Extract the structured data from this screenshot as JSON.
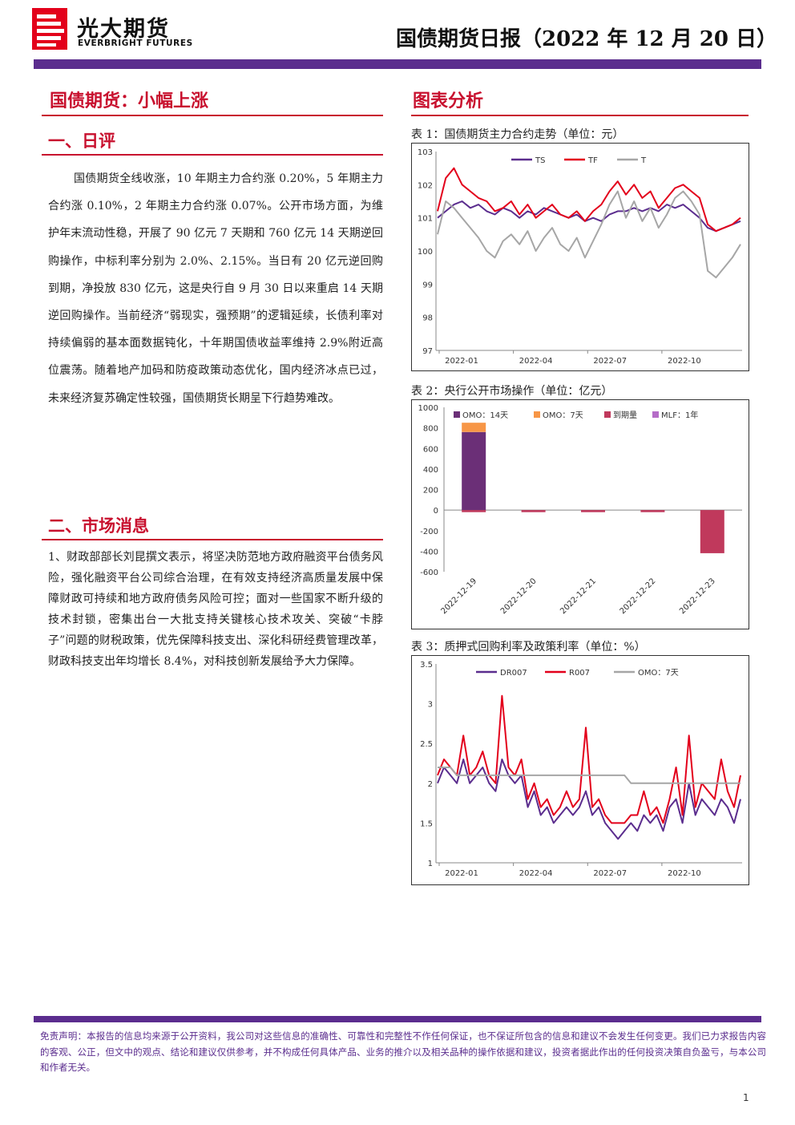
{
  "header": {
    "logo_cn": "光大期货",
    "logo_en": "EVERBRIGHT FUTURES",
    "report_title": "国债期货日报（2022 年 12 月 20 日）"
  },
  "main_title": "国债期货：小幅上涨",
  "chart_section_title": "图表分析",
  "section1": {
    "heading": "一、日评",
    "paragraph": "国债期货全线收涨，10 年期主力合约涨 0.20%，5 年期主力合约涨 0.10%，2 年期主力合约涨 0.07%。公开市场方面，为维护年末流动性稳，开展了 90 亿元 7 天期和 760 亿元 14 天期逆回购操作，中标利率分别为 2.0%、2.15%。当日有 20 亿元逆回购到期，净投放 830 亿元，这是央行自 9 月 30 日以来重启 14 天期逆回购操作。当前经济“弱现实，强预期”的逻辑延续，长债利率对持续偏弱的基本面数据钝化，十年期国债收益率维持 2.9%附近高位震荡。随着地产加码和防疫政策动态优化，国内经济冰点已过，未来经济复苏确定性较强，国债期货长期呈下行趋势难改。"
  },
  "section2": {
    "heading": "二、市场消息",
    "paragraph": "1、财政部部长刘昆撰文表示，将坚决防范地方政府融资平台债务风险，强化融资平台公司综合治理，在有效支持经济高质量发展中保障财政可持续和地方政府债务风险可控；面对一些国家不断升级的技术封锁，密集出台一大批支持关键核心技术攻关、突破“卡脖子”问题的财税政策，优先保障科技支出、深化科研经费管理改革，财政科技支出年均增长 8.4%，对科技创新发展给予大力保障。"
  },
  "captions": {
    "chart1": "表 1：国债期货主力合约走势（单位：元）",
    "chart2": "表 2：央行公开市场操作（单位：亿元）",
    "chart3": "表 3：质押式回购利率及政策利率（单位：%）"
  },
  "chart_data": [
    {
      "type": "line",
      "x_ticks": [
        "2022-01",
        "2022-04",
        "2022-07",
        "2022-10"
      ],
      "ylim": [
        97,
        103
      ],
      "y_ticks": [
        97,
        98,
        99,
        100,
        101,
        102,
        103
      ],
      "legend_position": "top",
      "series": [
        {
          "name": "TS",
          "color": "#5b2d8e",
          "values": [
            101.0,
            101.2,
            101.4,
            101.5,
            101.3,
            101.4,
            101.2,
            101.1,
            101.3,
            101.2,
            101.0,
            101.2,
            101.1,
            101.3,
            101.2,
            101.1,
            101.0,
            101.1,
            100.9,
            101.0,
            100.9,
            101.1,
            101.2,
            101.2,
            101.3,
            101.2,
            101.3,
            101.2,
            101.4,
            101.3,
            101.4,
            101.2,
            101.0,
            100.7,
            100.6,
            100.7,
            100.8,
            100.9
          ]
        },
        {
          "name": "TF",
          "color": "#e3001b",
          "values": [
            101.2,
            102.2,
            102.5,
            102.0,
            101.8,
            101.6,
            101.5,
            101.2,
            101.3,
            101.5,
            101.1,
            101.4,
            101.0,
            101.2,
            101.4,
            101.1,
            101.0,
            101.2,
            100.9,
            101.2,
            101.4,
            101.8,
            102.1,
            101.7,
            102.0,
            101.6,
            101.8,
            101.3,
            101.6,
            101.9,
            102.0,
            101.8,
            101.6,
            100.8,
            100.6,
            100.7,
            100.8,
            101.0
          ]
        },
        {
          "name": "T",
          "color": "#a6a6a6",
          "values": [
            100.5,
            101.5,
            101.3,
            101.0,
            100.7,
            100.4,
            100.0,
            99.8,
            100.3,
            100.5,
            100.2,
            100.6,
            100.0,
            100.4,
            100.7,
            100.2,
            100.0,
            100.4,
            99.8,
            100.3,
            100.8,
            101.4,
            101.8,
            101.0,
            101.5,
            100.9,
            101.3,
            100.7,
            101.1,
            101.6,
            101.8,
            101.5,
            101.1,
            99.4,
            99.2,
            99.5,
            99.8,
            100.2
          ]
        }
      ]
    },
    {
      "type": "bar",
      "categories": [
        "2022-12-19",
        "2022-12-20",
        "2022-12-21",
        "2022-12-22",
        "2022-12-23"
      ],
      "ylim": [
        -600,
        1000
      ],
      "y_ticks": [
        1000,
        800,
        600,
        400,
        200,
        0,
        -200,
        -400,
        -600
      ],
      "legend_position": "top",
      "series": [
        {
          "name": "OMO：14天",
          "color": "#6b2f77",
          "values": [
            760,
            0,
            0,
            0,
            0
          ]
        },
        {
          "name": "OMO：7天",
          "color": "#f79646",
          "values": [
            90,
            0,
            0,
            0,
            0
          ]
        },
        {
          "name": "到期量",
          "color": "#c0395c",
          "values": [
            -20,
            -20,
            -20,
            -20,
            -420
          ]
        },
        {
          "name": "MLF：1年",
          "color": "#b56cc7",
          "values": [
            0,
            0,
            0,
            0,
            0
          ]
        }
      ]
    },
    {
      "type": "line",
      "x_ticks": [
        "2022-01",
        "2022-04",
        "2022-07",
        "2022-10"
      ],
      "ylim": [
        1,
        3.5
      ],
      "y_ticks": [
        1,
        1.5,
        2,
        2.5,
        3,
        3.5
      ],
      "legend_position": "top",
      "series": [
        {
          "name": "DR007",
          "color": "#5b2d8e",
          "values": [
            2.0,
            2.2,
            2.1,
            2.0,
            2.3,
            2.0,
            2.1,
            2.2,
            2.0,
            1.9,
            2.3,
            2.1,
            2.0,
            2.1,
            1.7,
            1.9,
            1.6,
            1.7,
            1.5,
            1.6,
            1.7,
            1.6,
            1.7,
            1.9,
            1.6,
            1.7,
            1.5,
            1.4,
            1.3,
            1.4,
            1.5,
            1.4,
            1.6,
            1.5,
            1.6,
            1.4,
            1.7,
            1.8,
            1.5,
            2.0,
            1.6,
            1.8,
            1.7,
            1.6,
            1.8,
            1.7,
            1.5,
            1.8
          ]
        },
        {
          "name": "R007",
          "color": "#e3001b",
          "values": [
            2.1,
            2.3,
            2.2,
            2.1,
            2.6,
            2.1,
            2.2,
            2.4,
            2.1,
            2.0,
            3.1,
            2.2,
            2.1,
            2.3,
            1.8,
            2.0,
            1.7,
            1.8,
            1.6,
            1.7,
            1.9,
            1.7,
            1.8,
            2.7,
            1.7,
            1.8,
            1.6,
            1.5,
            1.5,
            1.5,
            1.6,
            1.6,
            1.9,
            1.6,
            1.7,
            1.5,
            1.8,
            2.2,
            1.6,
            2.6,
            1.7,
            2.0,
            1.9,
            1.8,
            2.3,
            1.9,
            1.7,
            2.1
          ]
        },
        {
          "name": "OMO：7天",
          "color": "#a6a6a6",
          "values": [
            2.2,
            2.2,
            2.2,
            2.1,
            2.1,
            2.1,
            2.1,
            2.1,
            2.1,
            2.1,
            2.1,
            2.1,
            2.1,
            2.1,
            2.1,
            2.1,
            2.1,
            2.1,
            2.1,
            2.1,
            2.1,
            2.1,
            2.1,
            2.1,
            2.1,
            2.1,
            2.1,
            2.1,
            2.1,
            2.1,
            2.0,
            2.0,
            2.0,
            2.0,
            2.0,
            2.0,
            2.0,
            2.0,
            2.0,
            2.0,
            2.0,
            2.0,
            2.0,
            2.0,
            2.0,
            2.0,
            2.0,
            2.0
          ]
        }
      ]
    }
  ],
  "disclaimer": "免责声明：本报告的信息均来源于公开资料，我公司对这些信息的准确性、可靠性和完整性不作任何保证，也不保证所包含的信息和建议不会发生任何变更。我们已力求报告内容的客观、公正，但文中的观点、结论和建议仅供参考，并不构成任何具体产品、业务的推介以及相关品种的操作依据和建议，投资者据此作出的任何投资决策自负盈亏，与本公司和作者无关。",
  "page_number": "1"
}
